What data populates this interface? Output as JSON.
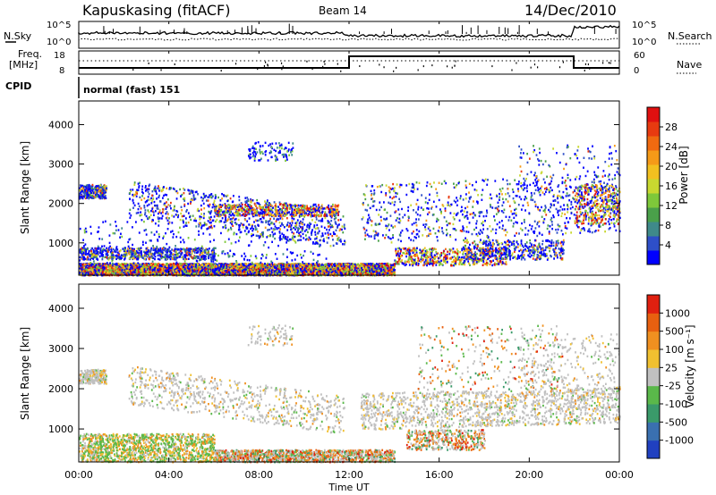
{
  "header": {
    "station": "Kapuskasing (fitACF)",
    "beam": "Beam 14",
    "date": "14/Dec/2010"
  },
  "noise_panel": {
    "left_label": "N.Sky",
    "right_label": "N.Search",
    "left_ticks": [
      "10^5",
      "10^0"
    ],
    "right_ticks": [
      "10^5",
      "10^0"
    ]
  },
  "freq_panel": {
    "left_label_1": "Freq.",
    "left_label_2": "[MHz]",
    "right_label": "Nave",
    "left_ticks": [
      "18",
      "8"
    ],
    "right_ticks": [
      "60",
      "0"
    ]
  },
  "cpid_panel": {
    "label": "CPID",
    "program": "normal (fast) 151"
  },
  "chart_data": [
    {
      "type": "heatmap",
      "name": "power-rti",
      "ylabel": "Slant Range [km]",
      "xlabel": "Time UT",
      "ylim": [
        180,
        4600
      ],
      "xlim": [
        0,
        24
      ],
      "yticks": [
        "1000",
        "2000",
        "3000",
        "4000"
      ],
      "xticks": [
        "00:00",
        "04:00",
        "08:00",
        "12:00",
        "16:00",
        "20:00",
        "00:00"
      ],
      "colorbar": {
        "label": "Power [dB]",
        "ticks": [
          "28",
          "24",
          "20",
          "16",
          "12",
          "8",
          "4"
        ],
        "colors": [
          "#0000ff",
          "#2e4fc8",
          "#3f8a8a",
          "#4aa04a",
          "#7ec83a",
          "#c8d830",
          "#f2c020",
          "#f59a18",
          "#f06a10",
          "#e83a10",
          "#e01010"
        ]
      }
    },
    {
      "type": "heatmap",
      "name": "velocity-rti",
      "ylabel": "Slant Range [km]",
      "xlabel": "Time UT",
      "ylim": [
        180,
        4600
      ],
      "xlim": [
        0,
        24
      ],
      "yticks": [
        "1000",
        "2000",
        "3000",
        "4000"
      ],
      "xticks": [
        "00:00",
        "04:00",
        "08:00",
        "12:00",
        "16:00",
        "20:00",
        "00:00"
      ],
      "colorbar": {
        "label": "Velocity [m s⁻¹]",
        "ticks": [
          "1000",
          "500",
          "100",
          "25",
          "-25",
          "-100",
          "-500",
          "-1000"
        ],
        "colors": [
          "#2040c0",
          "#3a70b0",
          "#3a9a6a",
          "#5ab84a",
          "#c0c0c0",
          "#f0c030",
          "#f09020",
          "#e86010",
          "#e02010"
        ]
      }
    }
  ],
  "x_axis_title": "Time UT"
}
